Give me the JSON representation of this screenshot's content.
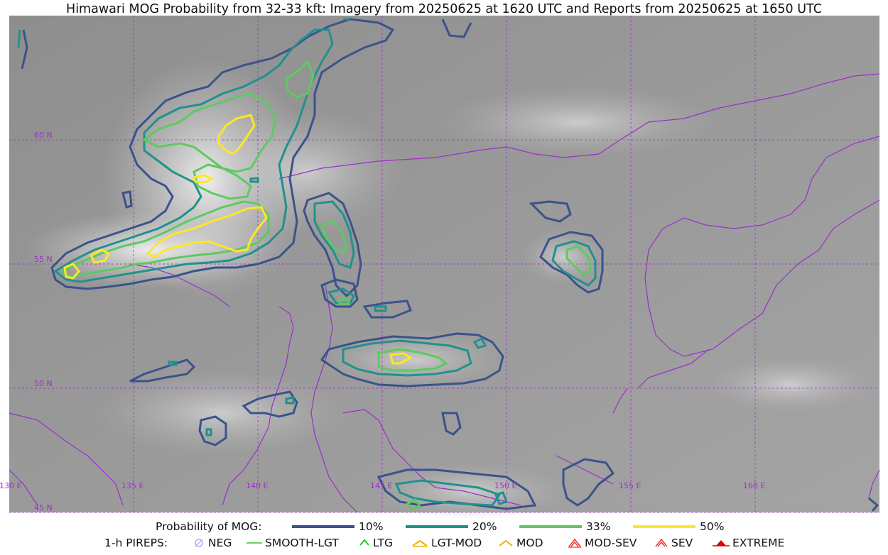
{
  "title": "Himawari MOG Probability from 32-33 kft: Imagery from 20250625 at 1620 UTC and Reports from 20250625 at 1650 UTC",
  "map": {
    "lat_labels": [
      "60 N",
      "55 N",
      "50 N",
      "45 N"
    ],
    "lon_labels": [
      "130 E",
      "135 E",
      "140 E",
      "145 E",
      "150 E",
      "155 E",
      "160 E"
    ],
    "colors": {
      "coastline": "#9b30c8",
      "grid": "#9b30c8",
      "contour_10": "#3b528b",
      "contour_20": "#21918c",
      "contour_33": "#5ec962",
      "contour_50": "#fde725"
    }
  },
  "legend": {
    "probability_label": "Probability of MOG:",
    "levels": [
      {
        "label": "10%",
        "color": "#3b528b"
      },
      {
        "label": "20%",
        "color": "#21918c"
      },
      {
        "label": "33%",
        "color": "#5ec962"
      },
      {
        "label": "50%",
        "color": "#fde725"
      }
    ],
    "pireps_label": "1-h PIREPS:",
    "pireps": [
      {
        "label": "NEG",
        "icon": "neg-icon",
        "color": "#b0b0f0"
      },
      {
        "label": "SMOOTH-LGT",
        "icon": "smooth-lgt-icon",
        "color": "#33cc33"
      },
      {
        "label": "LTG",
        "icon": "ltg-icon",
        "color": "#22cc22"
      },
      {
        "label": "LGT-MOD",
        "icon": "lgt-mod-icon",
        "color": "#f0b000"
      },
      {
        "label": "MOD",
        "icon": "mod-icon",
        "color": "#f0b000"
      },
      {
        "label": "MOD-SEV",
        "icon": "mod-sev-icon",
        "color": "#ee3333"
      },
      {
        "label": "SEV",
        "icon": "sev-icon",
        "color": "#ee3333"
      },
      {
        "label": "EXTREME",
        "icon": "extreme-icon",
        "color": "#dd0000"
      }
    ]
  }
}
